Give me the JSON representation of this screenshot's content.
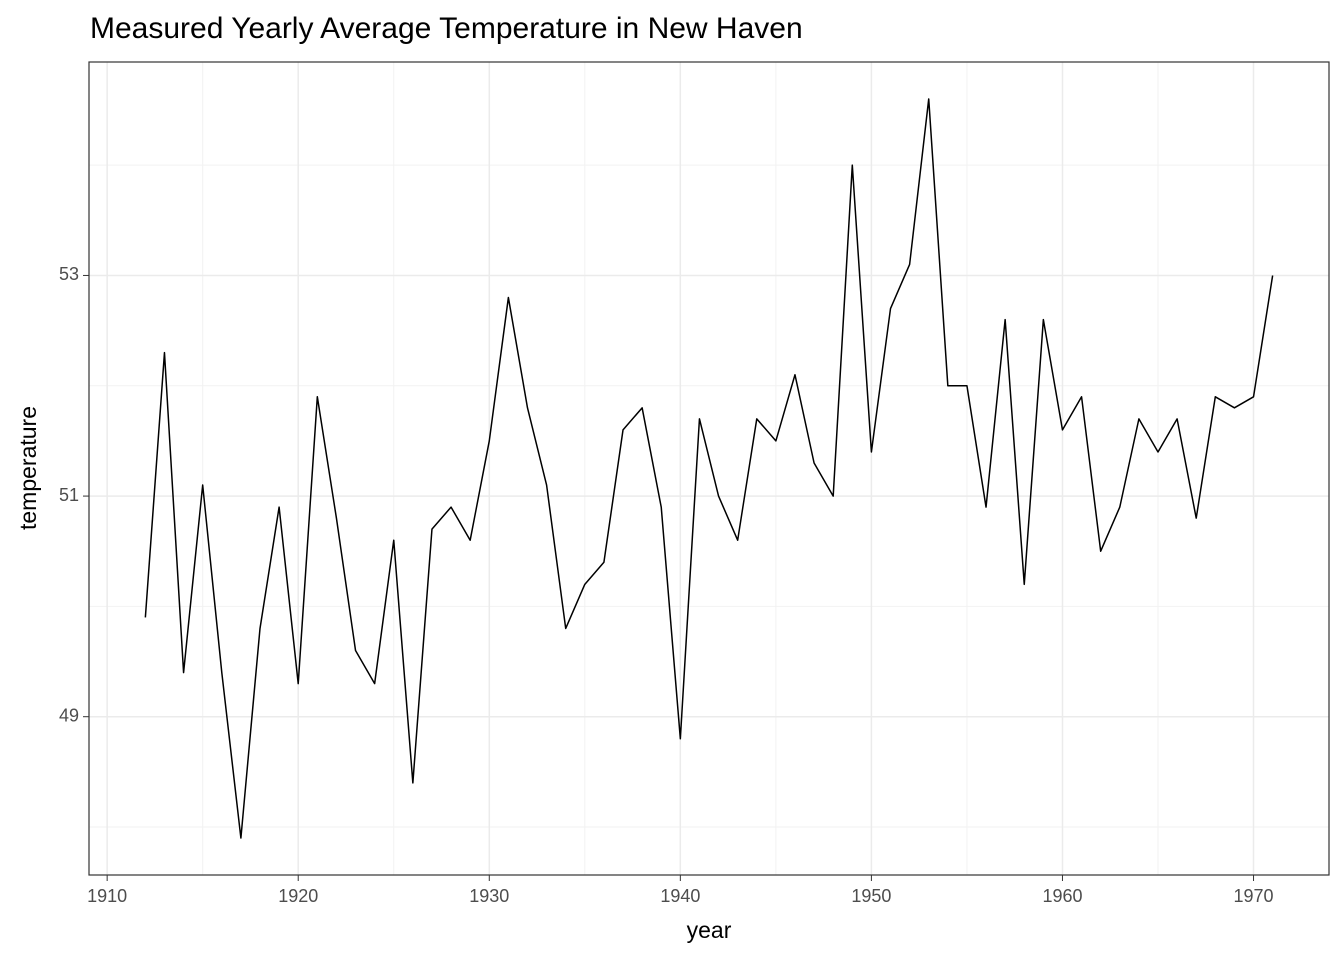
{
  "chart_data": {
    "type": "line",
    "title": "Measured Yearly Average Temperature in New Haven",
    "x_label": "year",
    "y_label": "temperature",
    "x": [
      1912,
      1913,
      1914,
      1915,
      1916,
      1917,
      1918,
      1919,
      1920,
      1921,
      1922,
      1923,
      1924,
      1925,
      1926,
      1927,
      1928,
      1929,
      1930,
      1931,
      1932,
      1933,
      1934,
      1935,
      1936,
      1937,
      1938,
      1939,
      1940,
      1941,
      1942,
      1943,
      1944,
      1945,
      1946,
      1947,
      1948,
      1949,
      1950,
      1951,
      1952,
      1953,
      1954,
      1955,
      1956,
      1957,
      1958,
      1959,
      1960,
      1961,
      1962,
      1963,
      1964,
      1965,
      1966,
      1967,
      1968,
      1969,
      1970,
      1971
    ],
    "series": [
      {
        "name": "temperature",
        "color": "#000000",
        "values": [
          49.9,
          52.3,
          49.4,
          51.1,
          49.4,
          47.9,
          49.8,
          50.9,
          49.3,
          51.9,
          50.8,
          49.6,
          49.3,
          50.6,
          48.4,
          50.7,
          50.9,
          50.6,
          51.5,
          52.8,
          51.8,
          51.1,
          49.8,
          50.2,
          50.4,
          51.6,
          51.8,
          50.9,
          48.8,
          51.7,
          51.0,
          50.6,
          51.7,
          51.5,
          52.1,
          51.3,
          51.0,
          54.0,
          51.4,
          52.7,
          53.1,
          54.6,
          52.0,
          52.0,
          50.9,
          52.6,
          50.2,
          52.6,
          51.6,
          51.9,
          50.5,
          50.9,
          51.7,
          51.4,
          51.7,
          50.8,
          51.9,
          51.8,
          51.9,
          53.0
        ]
      }
    ],
    "xlim": [
      1909.05,
      1973.95
    ],
    "xticks": [
      1910,
      1920,
      1930,
      1940,
      1950,
      1960,
      1970
    ],
    "ylim": [
      47.565,
      54.935
    ],
    "yticks": [
      49,
      51,
      53
    ],
    "grid": true
  }
}
